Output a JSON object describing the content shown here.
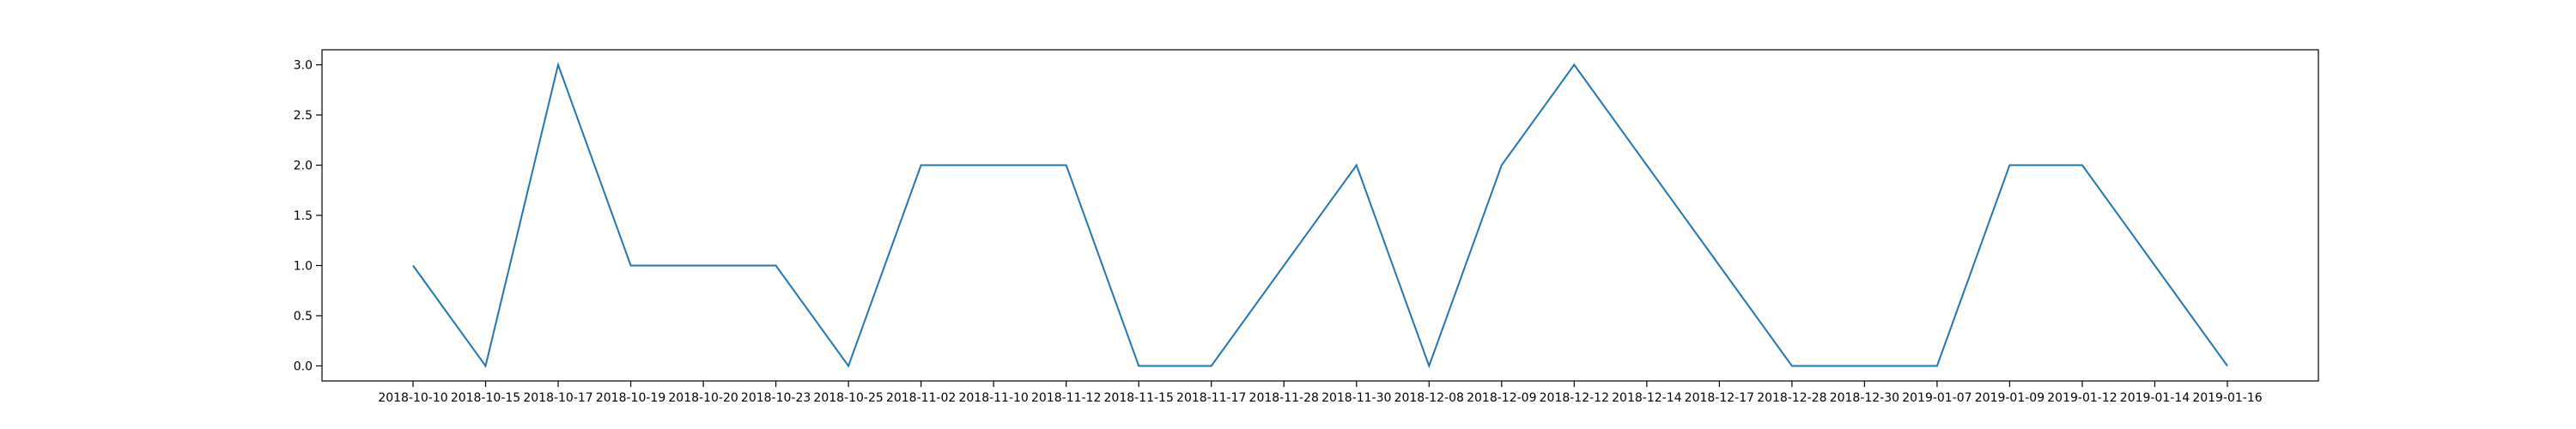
{
  "chart_data": {
    "type": "line",
    "title": "",
    "xlabel": "",
    "ylabel": "",
    "x": [
      "2018-10-10",
      "2018-10-15",
      "2018-10-17",
      "2018-10-19",
      "2018-10-20",
      "2018-10-23",
      "2018-10-25",
      "2018-11-02",
      "2018-11-10",
      "2018-11-12",
      "2018-11-15",
      "2018-11-17",
      "2018-11-28",
      "2018-11-30",
      "2018-12-08",
      "2018-12-09",
      "2018-12-12",
      "2018-12-14",
      "2018-12-17",
      "2018-12-28",
      "2018-12-30",
      "2019-01-07",
      "2019-01-09",
      "2019-01-12",
      "2019-01-14",
      "2019-01-16"
    ],
    "series": [
      {
        "values": [
          1,
          0,
          3,
          1,
          1,
          1,
          0,
          2,
          2,
          2,
          0,
          0,
          1,
          2,
          0,
          2,
          3,
          2,
          1,
          0,
          0,
          0,
          2,
          2,
          1,
          0
        ],
        "color": "#1f77b4"
      }
    ],
    "ylim": [
      -0.15,
      3.15
    ],
    "yticks": [
      0.0,
      0.5,
      1.0,
      1.5,
      2.0,
      2.5,
      3.0
    ],
    "ytick_labels": [
      "0.0",
      "0.5",
      "1.0",
      "1.5",
      "2.0",
      "2.5",
      "3.0"
    ],
    "grid": false,
    "legend": "none"
  }
}
